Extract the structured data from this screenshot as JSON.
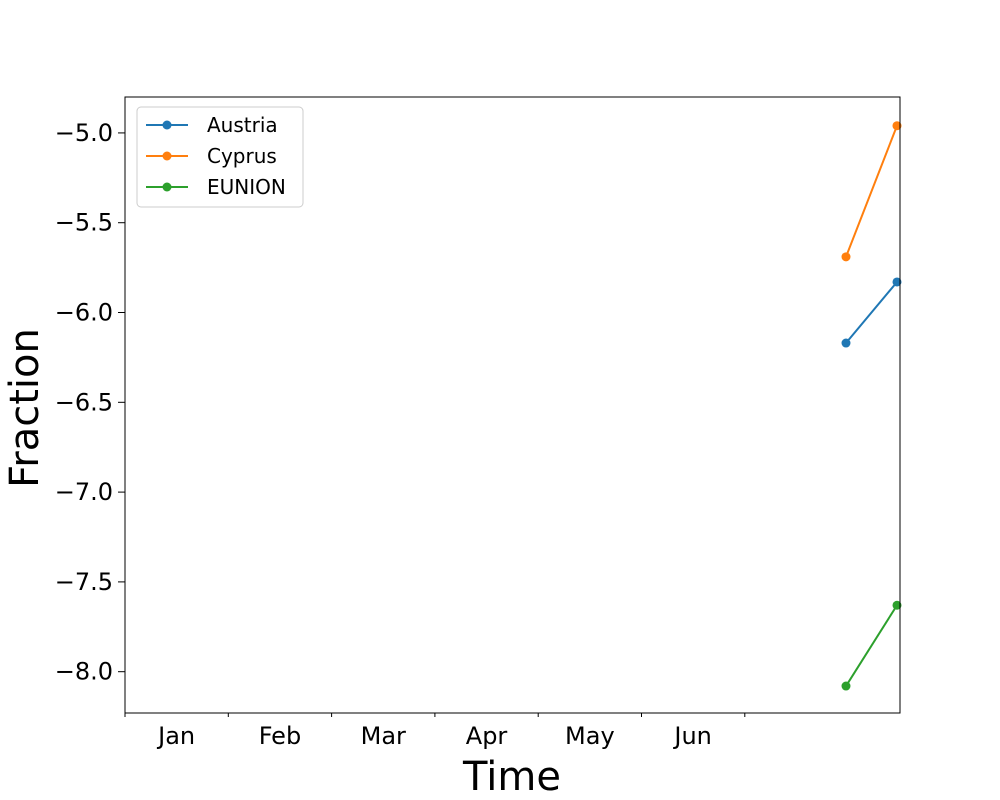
{
  "chart_data": {
    "type": "line",
    "title": "",
    "xlabel": "Time",
    "ylabel": "Fraction",
    "x_tick_labels": [
      "Jan",
      "Feb",
      "Mar",
      "Apr",
      "May",
      "Jun"
    ],
    "ylim": [
      -8.23,
      -4.8
    ],
    "y_ticks": [
      -5.0,
      -5.5,
      -6.0,
      -6.5,
      -7.0,
      -7.5,
      -8.0
    ],
    "y_tick_labels": [
      "−5.0",
      "−5.5",
      "−6.0",
      "−6.5",
      "−7.0",
      "−7.5",
      "−8.0"
    ],
    "grid": false,
    "legend_position": "upper-left",
    "series": [
      {
        "name": "Austria",
        "color": "#1f77b4",
        "points": [
          [
            0,
            -6.17
          ],
          [
            1,
            -5.83
          ]
        ]
      },
      {
        "name": "Cyprus",
        "color": "#ff7f0e",
        "points": [
          [
            0,
            -5.69
          ],
          [
            1,
            -4.96
          ]
        ]
      },
      {
        "name": "EUNION",
        "color": "#2ca02c",
        "points": [
          [
            0,
            -8.08
          ],
          [
            1,
            -7.63
          ]
        ]
      }
    ]
  }
}
